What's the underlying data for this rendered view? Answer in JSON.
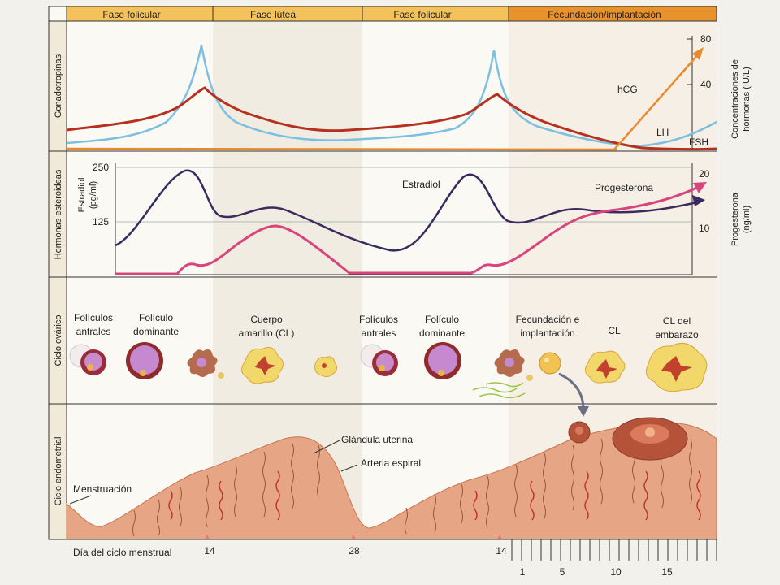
{
  "phases": [
    {
      "label": "Fase folicular",
      "color": "#f3c25a"
    },
    {
      "label": "Fase lútea",
      "color": "#f3c25a"
    },
    {
      "label": "Fase folicular",
      "color": "#f3c25a"
    },
    {
      "label": "Fecundación/implantación",
      "color": "#e8922e"
    }
  ],
  "rows": {
    "gonadotropinas": "Gonadotropinas",
    "esteroideas": "Hormonas esteroideas",
    "ovarico": "Ciclo ovárico",
    "endometrial": "Ciclo endometrial"
  },
  "gonado_panel": {
    "right_axis_title_1": "Concentraciones de",
    "right_axis_title_2": "hormonas (IU/L)",
    "ticks": [
      "80",
      "40"
    ],
    "labels": {
      "hcg": "hCG",
      "lh": "LH",
      "fsh": "FSH"
    },
    "colors": {
      "lh": "#b5301f",
      "fsh": "#7cc0e0",
      "hcg": "#e8892a"
    }
  },
  "steroid_panel": {
    "left_axis_title_1": "Estradiol",
    "left_axis_title_2": "(pg/ml)",
    "left_ticks": [
      "250",
      "125"
    ],
    "right_axis_title_1": "Progesterona",
    "right_axis_title_2": "(ng/ml)",
    "right_ticks": [
      "20",
      "10"
    ],
    "labels": {
      "estradiol": "Estradiol",
      "progesterona": "Progesterona"
    },
    "colors": {
      "estradiol": "#3b2a5e",
      "progesterona": "#d8457c"
    }
  },
  "ovarian": [
    {
      "l1": "Folículos",
      "l2": "antrales"
    },
    {
      "l1": "Folículo",
      "l2": "dominante"
    },
    {
      "l1": "Cuerpo",
      "l2": "amarillo (CL)"
    },
    {
      "l1": "Folículos",
      "l2": "antrales"
    },
    {
      "l1": "Folículo",
      "l2": "dominante"
    },
    {
      "l1": "Fecundación e",
      "l2": "implantación"
    },
    {
      "l1": "CL",
      "l2": ""
    },
    {
      "l1": "CL del",
      "l2": "embarazo"
    }
  ],
  "endometrial": {
    "menstruacion": "Menstruación",
    "glandula": "Glándula uterina",
    "arteria": "Arteria espiral"
  },
  "axis": {
    "title": "Día del ciclo menstrual",
    "ticks": [
      "14",
      "28",
      "14"
    ],
    "pregnancy_ticks": [
      "1",
      "5",
      "10",
      "15"
    ]
  }
}
